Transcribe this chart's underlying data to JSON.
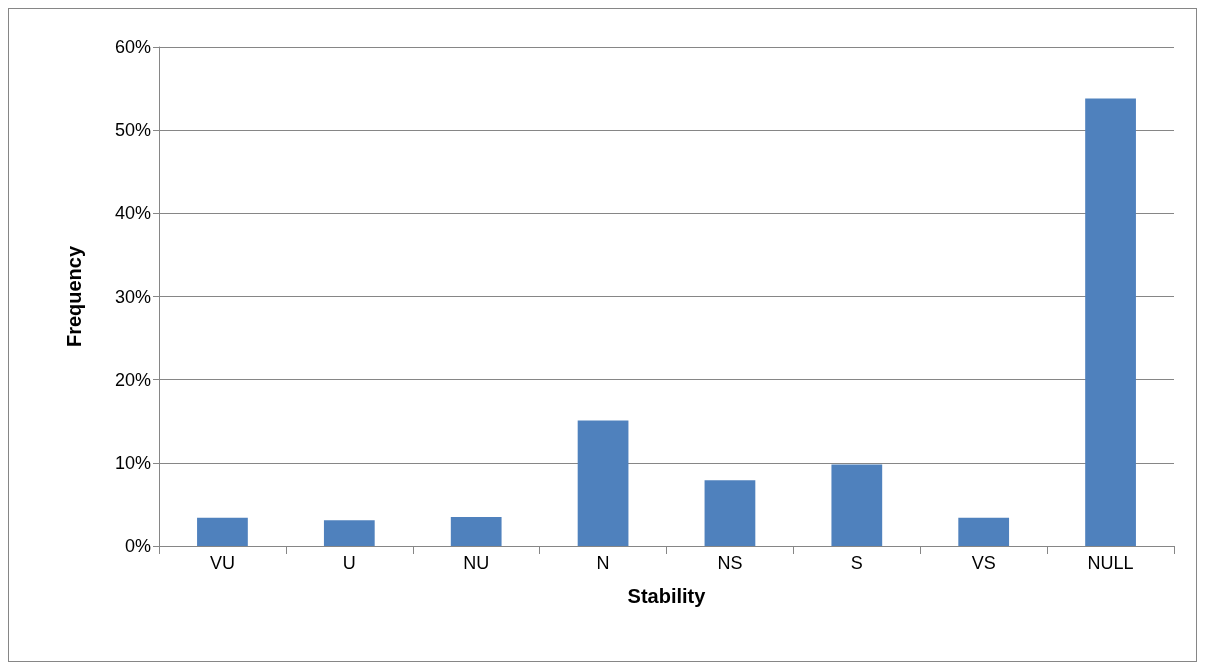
{
  "chart_data": {
    "type": "bar",
    "xlabel": "Stability",
    "ylabel": "Frequency",
    "categories": [
      "VU",
      "U",
      "NU",
      "N",
      "NS",
      "S",
      "VS",
      "NULL"
    ],
    "values": [
      3.4,
      3.1,
      3.5,
      15.1,
      7.9,
      9.8,
      3.4,
      53.8
    ],
    "color": "#4f81bd",
    "ylim": [
      0,
      60
    ],
    "yticks": [
      {
        "value": 0,
        "label": "0%"
      },
      {
        "value": 10,
        "label": "10%"
      },
      {
        "value": 20,
        "label": "20%"
      },
      {
        "value": 30,
        "label": "30%"
      },
      {
        "value": 40,
        "label": "40%"
      },
      {
        "value": 50,
        "label": "50%"
      },
      {
        "value": 60,
        "label": "60%"
      }
    ],
    "grid": "y"
  }
}
